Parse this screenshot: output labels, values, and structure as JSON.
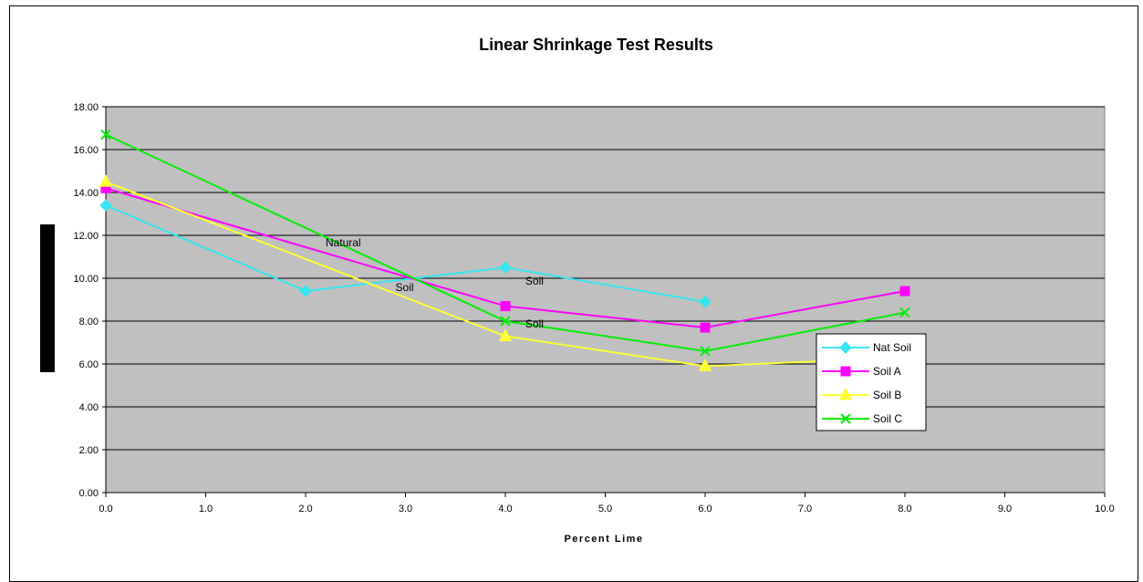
{
  "chart_data": {
    "type": "line",
    "title": "Linear Shrinkage Test Results",
    "xlabel": "Percent Lime",
    "ylabel": "",
    "xlim": [
      0,
      10
    ],
    "ylim": [
      0,
      18
    ],
    "x_ticks": [
      "0.0",
      "1.0",
      "2.0",
      "3.0",
      "4.0",
      "5.0",
      "6.0",
      "7.0",
      "8.0",
      "9.0",
      "10.0"
    ],
    "y_ticks": [
      "0.00",
      "2.00",
      "4.00",
      "6.00",
      "8.00",
      "10.00",
      "12.00",
      "14.00",
      "16.00",
      "18.00"
    ],
    "grid": true,
    "legend_position": "right",
    "plot_background": "#c0c0c0",
    "annotations": [
      {
        "text": "Natural",
        "x": 2.2,
        "y": 11.5
      },
      {
        "text": "Soil",
        "x": 2.9,
        "y": 9.4
      },
      {
        "text": "Soil",
        "x": 4.2,
        "y": 9.7
      },
      {
        "text": "Soil",
        "x": 4.2,
        "y": 7.7
      }
    ],
    "series": [
      {
        "name": "Nat Soil",
        "color": "#33e6f0",
        "marker": "diamond",
        "x": [
          0,
          2,
          4,
          6
        ],
        "y": [
          13.4,
          9.4,
          10.5,
          8.9
        ]
      },
      {
        "name": "Soil A",
        "color": "#ff00ff",
        "marker": "square",
        "x": [
          0,
          4,
          6,
          8
        ],
        "y": [
          14.2,
          8.7,
          7.7,
          9.4
        ]
      },
      {
        "name": "Soil B",
        "color": "#ffff33",
        "marker": "triangle",
        "x": [
          0,
          4,
          6,
          8
        ],
        "y": [
          14.5,
          7.3,
          5.9,
          6.3
        ]
      },
      {
        "name": "Soil C",
        "color": "#00ee00",
        "marker": "x",
        "x": [
          0,
          4,
          6,
          8
        ],
        "y": [
          16.7,
          8.0,
          6.6,
          8.4
        ]
      }
    ]
  }
}
